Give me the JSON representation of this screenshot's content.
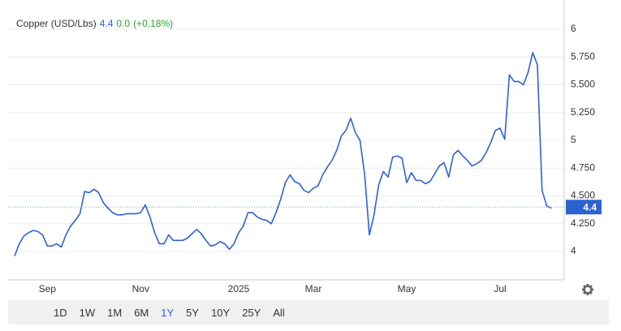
{
  "chart_data": {
    "type": "line",
    "title": "Copper (USD/Lbs)",
    "last_price": 4.4,
    "change": "0.0",
    "change_percent": "(+0.18%)",
    "color": "#2f62d1",
    "grid": true,
    "ylim": [
      3.745,
      6.19
    ],
    "yticks": [
      {
        "value": 4,
        "label": "4"
      },
      {
        "value": 4.25,
        "label": "4.250"
      },
      {
        "value": 4.5,
        "label": "4.500"
      },
      {
        "value": 4.75,
        "label": "4.750"
      },
      {
        "value": 5,
        "label": "5"
      },
      {
        "value": 5.25,
        "label": "5.250"
      },
      {
        "value": 5.5,
        "label": "5.500"
      },
      {
        "value": 5.75,
        "label": "5.750"
      },
      {
        "value": 6,
        "label": "6"
      }
    ],
    "categories": [
      null,
      null,
      null,
      null,
      null,
      null,
      null,
      "Sep",
      null,
      null,
      null,
      null,
      null,
      null,
      null,
      null,
      null,
      null,
      null,
      null,
      null,
      null,
      null,
      null,
      null,
      null,
      null,
      "Nov",
      null,
      null,
      null,
      null,
      null,
      null,
      null,
      null,
      null,
      null,
      null,
      null,
      null,
      null,
      null,
      null,
      null,
      null,
      null,
      null,
      "2025",
      null,
      null,
      null,
      null,
      null,
      null,
      null,
      null,
      null,
      null,
      null,
      null,
      null,
      null,
      null,
      "Mar",
      null,
      null,
      null,
      null,
      null,
      null,
      null,
      null,
      null,
      null,
      null,
      null,
      null,
      null,
      null,
      null,
      null,
      null,
      null,
      "May",
      null,
      null,
      null,
      null,
      null,
      null,
      null,
      null,
      null,
      null,
      null,
      null,
      null,
      null,
      null,
      null,
      null,
      null,
      null,
      "Jul",
      null,
      null,
      null,
      null,
      null,
      null,
      null,
      null,
      null,
      null,
      null
    ],
    "series": [
      {
        "name": "Copper",
        "color": "#2f62d1",
        "values": [
          3.96,
          4.07,
          4.14,
          4.17,
          4.19,
          4.18,
          4.15,
          4.05,
          4.05,
          4.07,
          4.04,
          4.15,
          4.23,
          4.28,
          4.34,
          4.54,
          4.53,
          4.56,
          4.53,
          4.44,
          4.39,
          4.35,
          4.33,
          4.33,
          4.34,
          4.34,
          4.34,
          4.35,
          4.42,
          4.31,
          4.17,
          4.07,
          4.07,
          4.15,
          4.1,
          4.1,
          4.1,
          4.12,
          4.16,
          4.2,
          4.16,
          4.1,
          4.05,
          4.06,
          4.09,
          4.07,
          4.02,
          4.07,
          4.17,
          4.23,
          4.35,
          4.35,
          4.31,
          4.29,
          4.28,
          4.25,
          4.35,
          4.47,
          4.62,
          4.69,
          4.63,
          4.61,
          4.55,
          4.53,
          4.57,
          4.59,
          4.69,
          4.76,
          4.82,
          4.91,
          5.04,
          5.09,
          5.2,
          5.07,
          5.0,
          4.69,
          4.15,
          4.33,
          4.6,
          4.72,
          4.67,
          4.85,
          4.86,
          4.84,
          4.62,
          4.71,
          4.64,
          4.64,
          4.61,
          4.63,
          4.7,
          4.77,
          4.8,
          4.67,
          4.87,
          4.91,
          4.86,
          4.82,
          4.77,
          4.79,
          4.82,
          4.89,
          4.98,
          5.09,
          5.11,
          5.01,
          5.59,
          5.53,
          5.53,
          5.5,
          5.61,
          5.79,
          5.68,
          4.55,
          4.41,
          4.39
        ]
      }
    ]
  },
  "range_buttons": {
    "labels": [
      "1D",
      "1W",
      "1M",
      "6M",
      "1Y",
      "5Y",
      "10Y",
      "25Y",
      "All"
    ],
    "selected": "1Y"
  }
}
